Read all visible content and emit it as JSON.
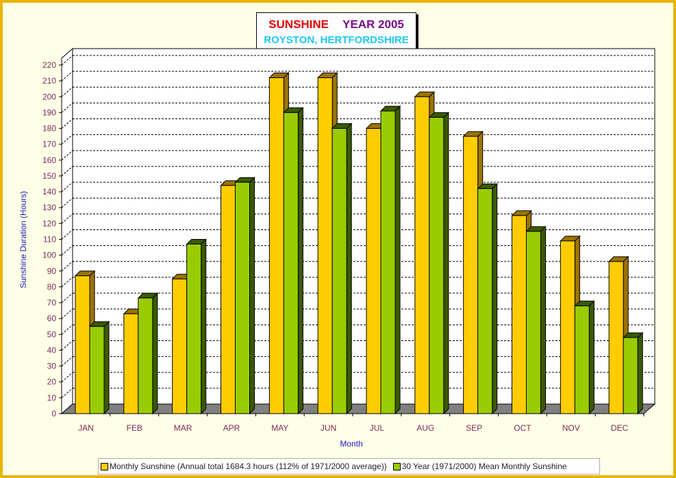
{
  "title": {
    "word1": "SUNSHINE",
    "word2": "YEAR 2005",
    "subtitle": "ROYSTON, HERTFORDSHIRE"
  },
  "colors": {
    "frame_border": "#E8B400",
    "background": "#FFFFE7",
    "title_word1": "#E60000",
    "title_word2": "#7A0A8A",
    "subtitle": "#1EC8F0",
    "series1_front": "#FFCC00",
    "series1_side": "#9C7300",
    "series2_front": "#99CC00",
    "series2_side": "#3A5A00",
    "axis_text": "#7A2A5A",
    "axis_title": "#2020C0"
  },
  "legend": {
    "item1": "Monthly Sunshine (Annual total 1684.3 hours (112% of 1971/2000 average))",
    "item2": "30 Year (1971/2000) Mean Monthly Sunshine"
  },
  "chart_data": {
    "type": "bar",
    "style": "3d-clustered",
    "categories": [
      "JAN",
      "FEB",
      "MAR",
      "APR",
      "MAY",
      "JUN",
      "JUL",
      "AUG",
      "SEP",
      "OCT",
      "NOV",
      "DEC"
    ],
    "series": [
      {
        "name": "Monthly Sunshine (Annual total 1684.3 hours (112% of 1971/2000 average))",
        "values": [
          87,
          63,
          85,
          144,
          212,
          212,
          180,
          200,
          175,
          125,
          109,
          96
        ]
      },
      {
        "name": "30 Year (1971/2000) Mean Monthly Sunshine",
        "values": [
          55,
          73,
          107,
          146,
          190,
          180,
          191,
          187,
          142,
          115,
          68,
          48
        ]
      }
    ],
    "xlabel": "Month",
    "ylabel": "Sunshine Duration (Hours)",
    "ylim": [
      0,
      220
    ],
    "ytick_step": 10,
    "grid": true,
    "legend_position": "bottom"
  }
}
